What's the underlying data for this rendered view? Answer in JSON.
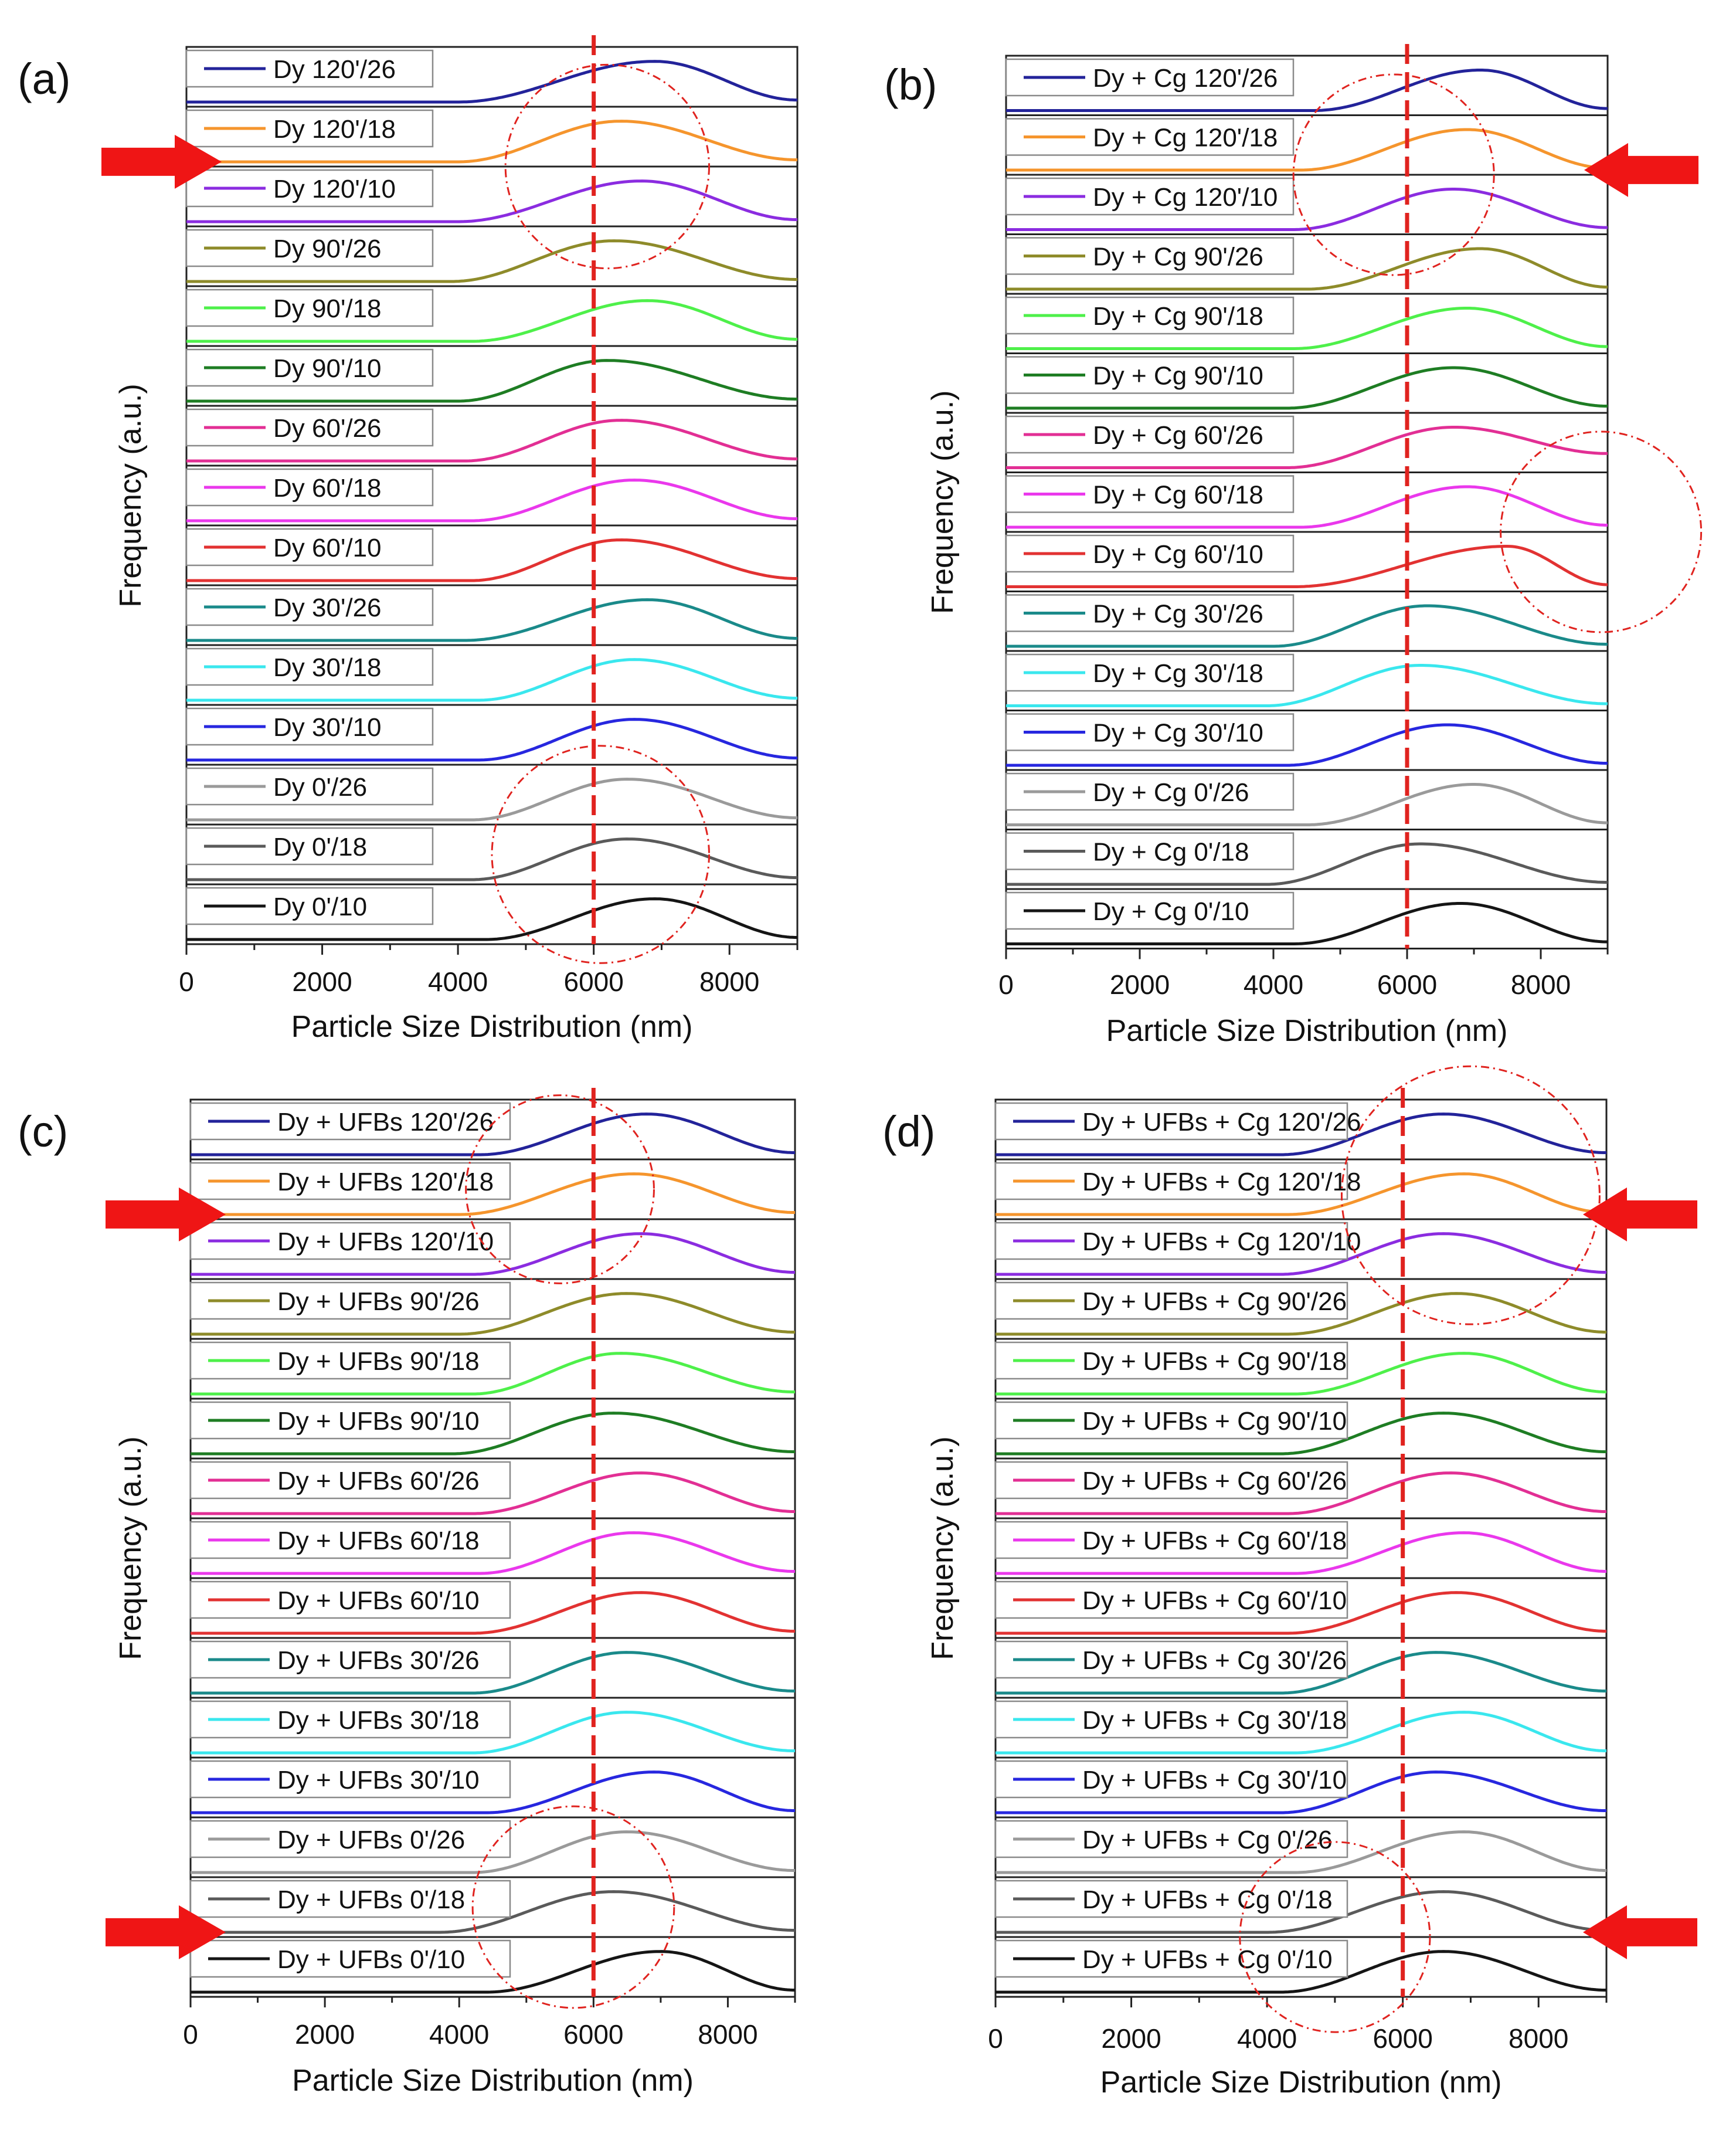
{
  "colors": {
    "s120_26": "#23239a",
    "s120_18": "#f5952d",
    "s120_10": "#8b2ce0",
    "s90_26": "#8e8b2a",
    "s90_18": "#4ef04a",
    "s90_10": "#1e7d23",
    "s60_26": "#e22f94",
    "s60_18": "#ea38ec",
    "s60_10": "#e23232",
    "s30_26": "#1a8a8a",
    "s30_18": "#3ae7ee",
    "s30_10": "#2727df",
    "s0_26": "#9a9a9a",
    "s0_18": "#5a5a5a",
    "s0_10": "#151515",
    "dashed_line": "#e0231f",
    "annotation_circle": "#e0231f",
    "arrow": "#ef1515",
    "frame": "#222222"
  },
  "chart_data": [
    {
      "panel_label": "(a)",
      "type": "line",
      "xlabel": "Particle Size Distribution (nm)",
      "ylabel": "Frequency (a.u.)",
      "xlim": [
        0,
        9000
      ],
      "xticks": [
        "0",
        "2000",
        "4000",
        "6000",
        "8000"
      ],
      "reference_line_x": 6000,
      "series": [
        {
          "name": "Dy 120'/26",
          "color_key": "s120_26",
          "onset": 4000,
          "peak": 6900,
          "end_level": 0.05
        },
        {
          "name": "Dy 120'/18",
          "color_key": "s120_18",
          "onset": 4000,
          "peak": 6400,
          "end_level": 0.05
        },
        {
          "name": "Dy 120'/10",
          "color_key": "s120_10",
          "onset": 4000,
          "peak": 6700,
          "end_level": 0.05
        },
        {
          "name": "Dy 90'/26",
          "color_key": "s90_26",
          "onset": 3900,
          "peak": 6300,
          "end_level": 0.05
        },
        {
          "name": "Dy 90'/18",
          "color_key": "s90_18",
          "onset": 4200,
          "peak": 6800,
          "end_level": 0.05
        },
        {
          "name": "Dy 90'/10",
          "color_key": "s90_10",
          "onset": 4000,
          "peak": 6200,
          "end_level": 0.05
        },
        {
          "name": "Dy 60'/26",
          "color_key": "s60_26",
          "onset": 4100,
          "peak": 6400,
          "end_level": 0.05
        },
        {
          "name": "Dy 60'/18",
          "color_key": "s60_18",
          "onset": 4200,
          "peak": 6600,
          "end_level": 0.05
        },
        {
          "name": "Dy 60'/10",
          "color_key": "s60_10",
          "onset": 4200,
          "peak": 6400,
          "end_level": 0.05
        },
        {
          "name": "Dy 30'/26",
          "color_key": "s30_26",
          "onset": 4100,
          "peak": 6800,
          "end_level": 0.05
        },
        {
          "name": "Dy 30'/18",
          "color_key": "s30_18",
          "onset": 4300,
          "peak": 6600,
          "end_level": 0.05
        },
        {
          "name": "Dy 30'/10",
          "color_key": "s30_10",
          "onset": 4300,
          "peak": 6600,
          "end_level": 0.05
        },
        {
          "name": "Dy 0'/26",
          "color_key": "s0_26",
          "onset": 4200,
          "peak": 6500,
          "end_level": 0.05
        },
        {
          "name": "Dy 0'/18",
          "color_key": "s0_18",
          "onset": 4200,
          "peak": 6500,
          "end_level": 0.05
        },
        {
          "name": "Dy 0'/10",
          "color_key": "s0_10",
          "onset": 4400,
          "peak": 6900,
          "end_level": 0.05
        }
      ],
      "annotation_circles": [
        {
          "cx": 6200,
          "row": 2.0,
          "r_units": 1500
        },
        {
          "cx": 6100,
          "row": 13.5,
          "r_units": 1600
        }
      ],
      "arrows": [
        {
          "row": 2,
          "side": "left"
        }
      ]
    },
    {
      "panel_label": "(b)",
      "type": "line",
      "xlabel": "Particle Size Distribution (nm)",
      "ylabel": "Frequency (a.u.)",
      "xlim": [
        0,
        9000
      ],
      "xticks": [
        "0",
        "2000",
        "4000",
        "6000",
        "8000"
      ],
      "reference_line_x": 6000,
      "series": [
        {
          "name": "Dy + Cg 120'/26",
          "color_key": "s120_26",
          "onset": 4600,
          "peak": 7100,
          "end_level": 0.05
        },
        {
          "name": "Dy + Cg 120'/18",
          "color_key": "s120_18",
          "onset": 4400,
          "peak": 6900,
          "end_level": 0.05
        },
        {
          "name": "Dy + Cg 120'/10",
          "color_key": "s120_10",
          "onset": 4300,
          "peak": 6700,
          "end_level": 0.05
        },
        {
          "name": "Dy + Cg 90'/26",
          "color_key": "s90_26",
          "onset": 4500,
          "peak": 7100,
          "end_level": 0.05
        },
        {
          "name": "Dy + Cg 90'/18",
          "color_key": "s90_18",
          "onset": 4300,
          "peak": 6900,
          "end_level": 0.05
        },
        {
          "name": "Dy + Cg 90'/10",
          "color_key": "s90_10",
          "onset": 4200,
          "peak": 6700,
          "end_level": 0.05
        },
        {
          "name": "Dy + Cg 60'/26",
          "color_key": "s60_26",
          "onset": 4200,
          "peak": 6700,
          "end_level": 0.35
        },
        {
          "name": "Dy + Cg 60'/18",
          "color_key": "s60_18",
          "onset": 4400,
          "peak": 6900,
          "end_level": 0.05
        },
        {
          "name": "Dy + Cg 60'/10",
          "color_key": "s60_10",
          "onset": 4300,
          "peak": 7500,
          "end_level": 0.05
        },
        {
          "name": "Dy + Cg 30'/26",
          "color_key": "s30_26",
          "onset": 4000,
          "peak": 6300,
          "end_level": 0.05
        },
        {
          "name": "Dy + Cg 30'/18",
          "color_key": "s30_18",
          "onset": 3900,
          "peak": 6200,
          "end_level": 0.05
        },
        {
          "name": "Dy + Cg 30'/10",
          "color_key": "s30_10",
          "onset": 4200,
          "peak": 6600,
          "end_level": 0.05
        },
        {
          "name": "Dy + Cg 0'/26",
          "color_key": "s0_26",
          "onset": 4500,
          "peak": 7000,
          "end_level": 0.05
        },
        {
          "name": "Dy + Cg 0'/18",
          "color_key": "s0_18",
          "onset": 3900,
          "peak": 6200,
          "end_level": 0.05
        },
        {
          "name": "Dy + Cg 0'/10",
          "color_key": "s0_10",
          "onset": 4300,
          "peak": 6800,
          "end_level": 0.05
        }
      ],
      "annotation_circles": [
        {
          "cx": 5800,
          "row": 2.0,
          "r_units": 1500
        },
        {
          "cx": 8900,
          "row": 8.0,
          "r_units": 1500
        }
      ],
      "arrows": [
        {
          "row": 2,
          "side": "right"
        }
      ]
    },
    {
      "panel_label": "(c)",
      "type": "line",
      "xlabel": "Particle Size Distribution (nm)",
      "ylabel": "Frequency (a.u.)",
      "xlim": [
        0,
        9000
      ],
      "xticks": [
        "0",
        "2000",
        "4000",
        "6000",
        "8000"
      ],
      "reference_line_x": 6000,
      "series": [
        {
          "name": "Dy + UFBs 120'/26",
          "color_key": "s120_26",
          "onset": 4300,
          "peak": 6800,
          "end_level": 0.05
        },
        {
          "name": "Dy + UFBs 120'/18",
          "color_key": "s120_18",
          "onset": 4000,
          "peak": 6600,
          "end_level": 0.05
        },
        {
          "name": "Dy + UFBs 120'/10",
          "color_key": "s120_10",
          "onset": 4200,
          "peak": 6700,
          "end_level": 0.05
        },
        {
          "name": "Dy + UFBs 90'/26",
          "color_key": "s90_26",
          "onset": 4000,
          "peak": 6500,
          "end_level": 0.05
        },
        {
          "name": "Dy + UFBs 90'/18",
          "color_key": "s90_18",
          "onset": 4200,
          "peak": 6400,
          "end_level": 0.05
        },
        {
          "name": "Dy + UFBs 90'/10",
          "color_key": "s90_10",
          "onset": 3900,
          "peak": 6300,
          "end_level": 0.05
        },
        {
          "name": "Dy + UFBs 60'/26",
          "color_key": "s60_26",
          "onset": 4200,
          "peak": 6700,
          "end_level": 0.05
        },
        {
          "name": "Dy + UFBs 60'/18",
          "color_key": "s60_18",
          "onset": 4300,
          "peak": 6600,
          "end_level": 0.05
        },
        {
          "name": "Dy + UFBs 60'/10",
          "color_key": "s60_10",
          "onset": 4200,
          "peak": 6700,
          "end_level": 0.05
        },
        {
          "name": "Dy + UFBs 30'/26",
          "color_key": "s30_26",
          "onset": 4200,
          "peak": 6500,
          "end_level": 0.05
        },
        {
          "name": "Dy + UFBs 30'/18",
          "color_key": "s30_18",
          "onset": 4200,
          "peak": 6500,
          "end_level": 0.05
        },
        {
          "name": "Dy + UFBs 30'/10",
          "color_key": "s30_10",
          "onset": 4400,
          "peak": 6900,
          "end_level": 0.05
        },
        {
          "name": "Dy + UFBs 0'/26",
          "color_key": "s0_26",
          "onset": 4200,
          "peak": 6500,
          "end_level": 0.05
        },
        {
          "name": "Dy + UFBs 0'/18",
          "color_key": "s0_18",
          "onset": 3700,
          "peak": 6300,
          "end_level": 0.05
        },
        {
          "name": "Dy + UFBs 0'/10",
          "color_key": "s0_10",
          "onset": 4400,
          "peak": 7000,
          "end_level": 0.05
        }
      ],
      "annotation_circles": [
        {
          "cx": 5500,
          "row": 1.5,
          "r_units": 1400
        },
        {
          "cx": 5700,
          "row": 13.5,
          "r_units": 1500
        }
      ],
      "arrows": [
        {
          "row": 2,
          "side": "left"
        },
        {
          "row": 14,
          "side": "left"
        }
      ]
    },
    {
      "panel_label": "(d)",
      "type": "line",
      "xlabel": "Particle Size Distribution (nm)",
      "ylabel": "Frequency (a.u.)",
      "xlim": [
        0,
        9000
      ],
      "xticks": [
        "0",
        "2000",
        "4000",
        "6000",
        "8000"
      ],
      "reference_line_x": 6000,
      "series": [
        {
          "name": "Dy + UFBs + Cg 120'/26",
          "color_key": "s120_26",
          "onset": 4200,
          "peak": 6600,
          "end_level": 0.05
        },
        {
          "name": "Dy + UFBs + Cg 120'/18",
          "color_key": "s120_18",
          "onset": 4300,
          "peak": 6900,
          "end_level": 0.05
        },
        {
          "name": "Dy + UFBs + Cg 120'/10",
          "color_key": "s120_10",
          "onset": 4200,
          "peak": 6600,
          "end_level": 0.05
        },
        {
          "name": "Dy + UFBs + Cg 90'/26",
          "color_key": "s90_26",
          "onset": 4300,
          "peak": 6800,
          "end_level": 0.05
        },
        {
          "name": "Dy + UFBs + Cg 90'/18",
          "color_key": "s90_18",
          "onset": 4400,
          "peak": 6900,
          "end_level": 0.05
        },
        {
          "name": "Dy + UFBs + Cg 90'/10",
          "color_key": "s90_10",
          "onset": 4200,
          "peak": 6600,
          "end_level": 0.05
        },
        {
          "name": "Dy + UFBs + Cg 60'/26",
          "color_key": "s60_26",
          "onset": 4300,
          "peak": 6700,
          "end_level": 0.05
        },
        {
          "name": "Dy + UFBs + Cg 60'/18",
          "color_key": "s60_18",
          "onset": 4400,
          "peak": 6900,
          "end_level": 0.05
        },
        {
          "name": "Dy + UFBs + Cg 60'/10",
          "color_key": "s60_10",
          "onset": 4300,
          "peak": 6800,
          "end_level": 0.05
        },
        {
          "name": "Dy + UFBs + Cg 30'/26",
          "color_key": "s30_26",
          "onset": 4200,
          "peak": 6500,
          "end_level": 0.05
        },
        {
          "name": "Dy + UFBs + Cg 30'/18",
          "color_key": "s30_18",
          "onset": 4400,
          "peak": 6900,
          "end_level": 0.05
        },
        {
          "name": "Dy + UFBs + Cg 30'/10",
          "color_key": "s30_10",
          "onset": 4200,
          "peak": 6500,
          "end_level": 0.05
        },
        {
          "name": "Dy + UFBs + Cg 0'/26",
          "color_key": "s0_26",
          "onset": 4400,
          "peak": 6900,
          "end_level": 0.05
        },
        {
          "name": "Dy + UFBs + Cg 0'/18",
          "color_key": "s0_18",
          "onset": 4000,
          "peak": 6600,
          "end_level": 0.05
        },
        {
          "name": "Dy + UFBs + Cg 0'/10",
          "color_key": "s0_10",
          "onset": 4200,
          "peak": 6600,
          "end_level": 0.05
        }
      ],
      "annotation_circles": [
        {
          "cx": 7000,
          "row": 1.6,
          "r_units": 1900
        },
        {
          "cx": 5000,
          "row": 14.0,
          "r_units": 1400
        }
      ],
      "arrows": [
        {
          "row": 2,
          "side": "right"
        },
        {
          "row": 14,
          "side": "right"
        }
      ]
    }
  ]
}
